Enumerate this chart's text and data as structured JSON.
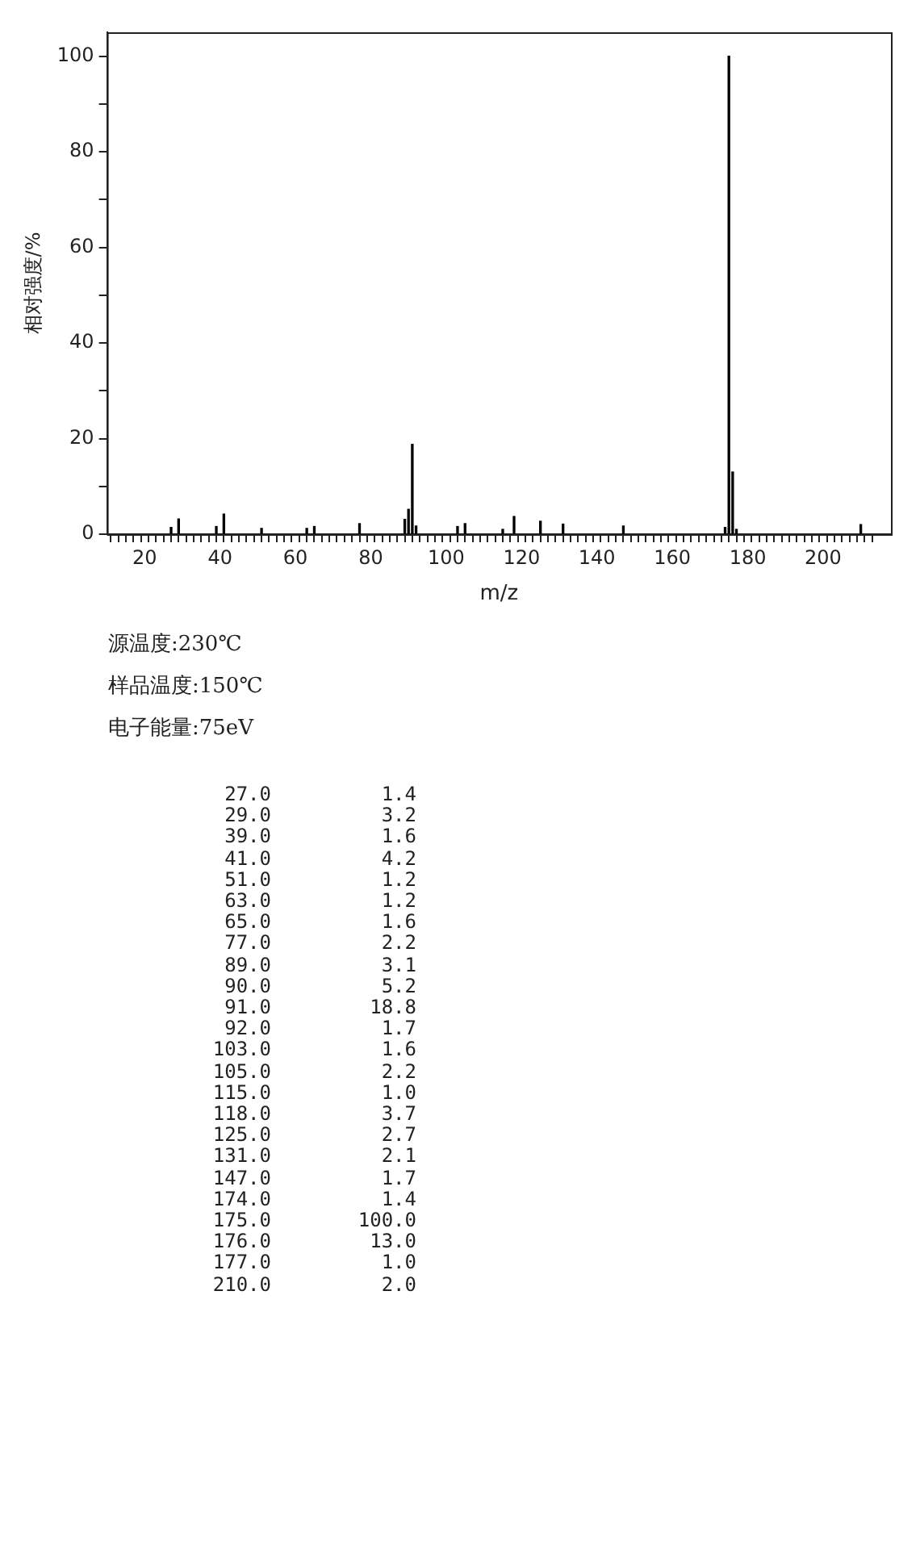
{
  "chart_data": [
    {
      "type": "bar",
      "xlabel": "m/z",
      "ylabel": "相对强度/%",
      "x": [
        27,
        29,
        39,
        41,
        51,
        63,
        65,
        77,
        89,
        90,
        91,
        92,
        103,
        105,
        115,
        118,
        125,
        131,
        147,
        174,
        175,
        176,
        177,
        210
      ],
      "values": [
        1.4,
        3.2,
        1.6,
        4.2,
        1.2,
        1.2,
        1.6,
        2.2,
        3.1,
        5.2,
        18.8,
        1.7,
        1.6,
        2.2,
        1.0,
        3.7,
        2.7,
        2.1,
        1.7,
        1.4,
        100.0,
        13.0,
        1.0,
        2.0
      ],
      "color": "#000000",
      "xlim": [
        10,
        218
      ],
      "xticks": [
        {
          "value": 12,
          "label": null
        },
        {
          "value": 14,
          "label": null
        },
        {
          "value": 16,
          "label": null
        },
        {
          "value": 18,
          "label": null
        },
        20,
        {
          "value": 22,
          "label": null
        },
        {
          "value": 24,
          "label": null
        },
        {
          "value": 26,
          "label": null
        },
        {
          "value": 28,
          "label": null
        },
        {
          "value": 30,
          "label": null
        },
        {
          "value": 32,
          "label": null
        },
        {
          "value": 34,
          "label": null
        },
        {
          "value": 36,
          "label": null
        },
        {
          "value": 38,
          "label": null
        },
        40,
        {
          "value": 42,
          "label": null
        },
        {
          "value": 44,
          "label": null
        },
        {
          "value": 46,
          "label": null
        },
        {
          "value": 48,
          "label": null
        },
        {
          "value": 50,
          "label": null
        },
        {
          "value": 52,
          "label": null
        },
        {
          "value": 54,
          "label": null
        },
        {
          "value": 56,
          "label": null
        },
        {
          "value": 58,
          "label": null
        },
        60,
        {
          "value": 62,
          "label": null
        },
        {
          "value": 64,
          "label": null
        },
        {
          "value": 66,
          "label": null
        },
        {
          "value": 68,
          "label": null
        },
        {
          "value": 70,
          "label": null
        },
        {
          "value": 72,
          "label": null
        },
        {
          "value": 74,
          "label": null
        },
        {
          "value": 76,
          "label": null
        },
        {
          "value": 78,
          "label": null
        },
        80,
        {
          "value": 82,
          "label": null
        },
        {
          "value": 84,
          "label": null
        },
        {
          "value": 86,
          "label": null
        },
        {
          "value": 88,
          "label": null
        },
        {
          "value": 90,
          "label": null
        },
        {
          "value": 92,
          "label": null
        },
        {
          "value": 94,
          "label": null
        },
        {
          "value": 96,
          "label": null
        },
        {
          "value": 98,
          "label": null
        },
        100,
        {
          "value": 102,
          "label": null
        },
        {
          "value": 104,
          "label": null
        },
        {
          "value": 106,
          "label": null
        },
        {
          "value": 108,
          "label": null
        },
        {
          "value": 110,
          "label": null
        },
        {
          "value": 112,
          "label": null
        },
        {
          "value": 114,
          "label": null
        },
        {
          "value": 116,
          "label": null
        },
        {
          "value": 118,
          "label": null
        },
        120,
        {
          "value": 122,
          "label": null
        },
        {
          "value": 124,
          "label": null
        },
        {
          "value": 126,
          "label": null
        },
        {
          "value": 128,
          "label": null
        },
        {
          "value": 130,
          "label": null
        },
        {
          "value": 132,
          "label": null
        },
        {
          "value": 134,
          "label": null
        },
        {
          "value": 136,
          "label": null
        },
        {
          "value": 138,
          "label": null
        },
        140,
        {
          "value": 142,
          "label": null
        },
        {
          "value": 144,
          "label": null
        },
        {
          "value": 146,
          "label": null
        },
        {
          "value": 148,
          "label": null
        },
        {
          "value": 150,
          "label": null
        },
        {
          "value": 152,
          "label": null
        },
        {
          "value": 154,
          "label": null
        },
        {
          "value": 156,
          "label": null
        },
        {
          "value": 158,
          "label": null
        },
        160,
        {
          "value": 162,
          "label": null
        },
        {
          "value": 164,
          "label": null
        },
        {
          "value": 166,
          "label": null
        },
        {
          "value": 168,
          "label": null
        },
        {
          "value": 170,
          "label": null
        },
        {
          "value": 172,
          "label": null
        },
        {
          "value": 174,
          "label": null
        },
        {
          "value": 176,
          "label": null
        },
        {
          "value": 178,
          "label": null
        },
        180,
        {
          "value": 182,
          "label": null
        },
        {
          "value": 184,
          "label": null
        },
        {
          "value": 186,
          "label": null
        },
        {
          "value": 188,
          "label": null
        },
        {
          "value": 190,
          "label": null
        },
        {
          "value": 192,
          "label": null
        },
        {
          "value": 194,
          "label": null
        },
        {
          "value": 196,
          "label": null
        },
        {
          "value": 198,
          "label": null
        },
        200,
        {
          "value": 202,
          "label": null
        },
        {
          "value": 204,
          "label": null
        },
        {
          "value": 206,
          "label": null
        },
        {
          "value": 208,
          "label": null
        },
        {
          "value": 210,
          "label": null
        },
        {
          "value": 212,
          "label": null
        }
      ],
      "ylim": [
        0,
        105
      ],
      "yticks": [
        0,
        {
          "value": 10,
          "label": null
        },
        20,
        {
          "value": 30,
          "label": null
        },
        40,
        {
          "value": 50,
          "label": null
        },
        60,
        {
          "value": 70,
          "label": null
        },
        80,
        {
          "value": 90,
          "label": null
        },
        100
      ],
      "grid": false,
      "legend": false,
      "annotations": [
        "源温度:230℃",
        "样品温度:150℃",
        "电子能量:75eV"
      ]
    },
    {
      "type": "other",
      "annotations": [
        "27.0",
        "1.4",
        "29.0",
        "3.2",
        "39.0",
        "1.6",
        "41.0",
        "4.2",
        "51.0",
        "1.2",
        "63.0",
        "1.2",
        "65.0",
        "1.6",
        "77.0",
        "2.2",
        "89.0",
        "3.1",
        "90.0",
        "5.2",
        "91.0",
        "18.8",
        "92.0",
        "1.7",
        "103.0",
        "1.6",
        "105.0",
        "2.2",
        "115.0",
        "1.0",
        "118.0",
        "3.7",
        "125.0",
        "2.7",
        "131.0",
        "2.1",
        "147.0",
        "1.7",
        "174.0",
        "1.4",
        "175.0",
        "100.0",
        "176.0",
        "13.0",
        "177.0",
        "1.0",
        "210.0",
        "2.0"
      ]
    }
  ]
}
